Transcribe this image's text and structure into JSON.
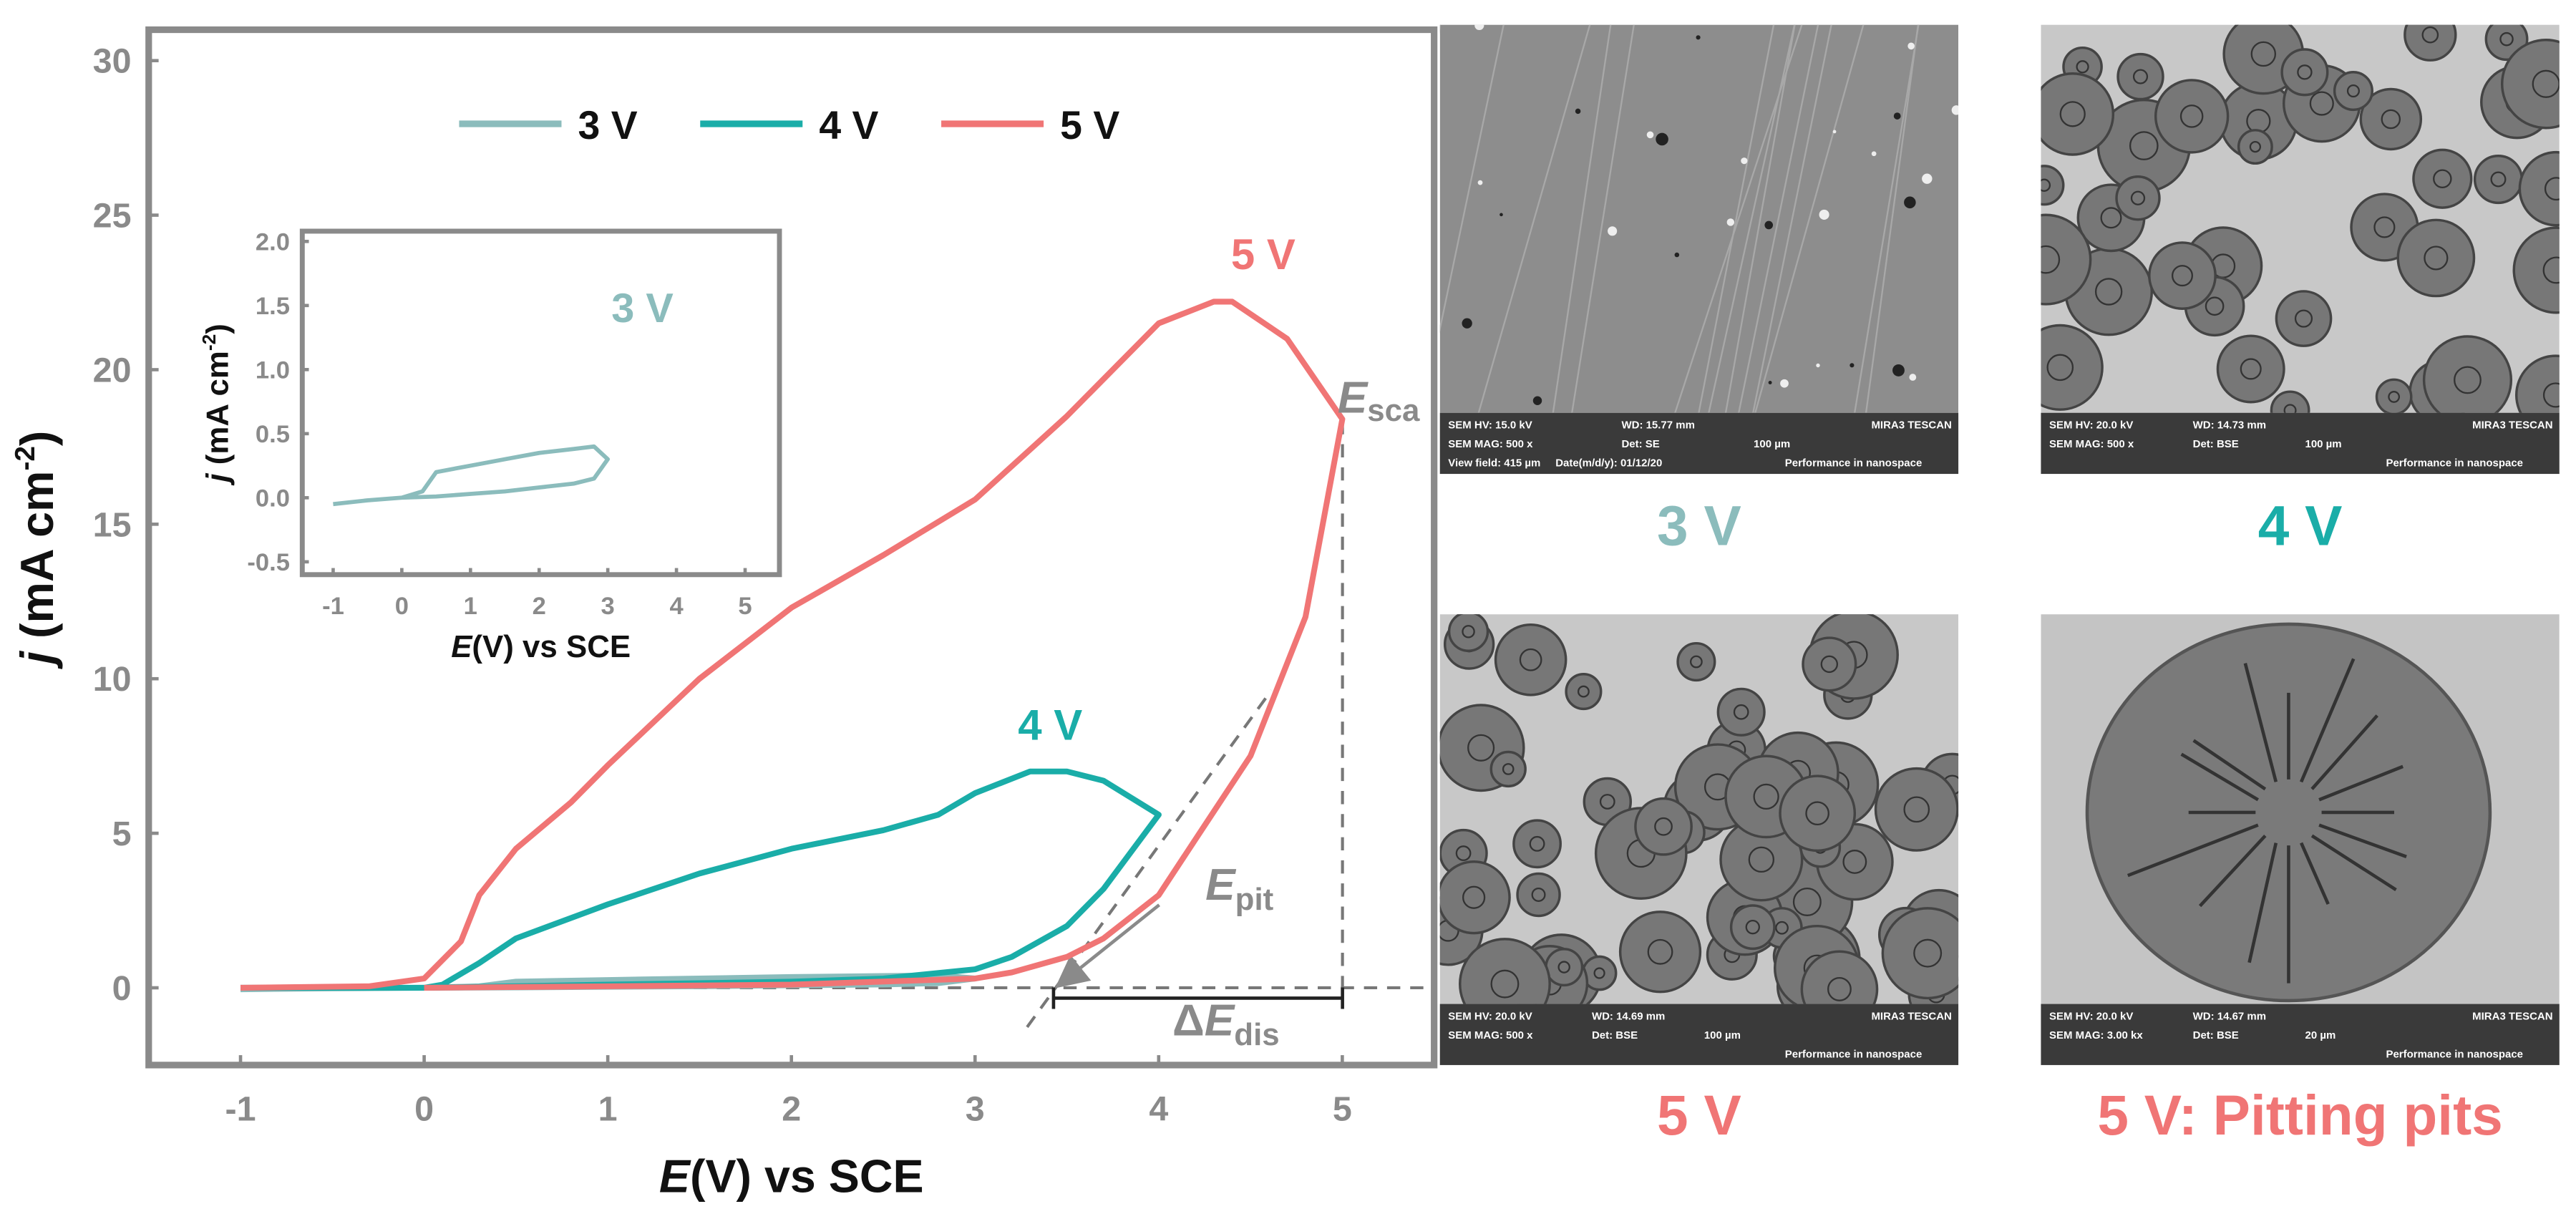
{
  "chart_data": [
    {
      "type": "line",
      "xlabel": [
        "E",
        "(V) vs SCE"
      ],
      "ylabel": [
        "j",
        " (mA cm",
        "-2",
        ")"
      ],
      "xlim": [
        -1.5,
        5.5
      ],
      "ylim": [
        -2.5,
        31
      ],
      "xticks": [
        -1,
        0,
        1,
        2,
        3,
        4,
        5
      ],
      "yticks": [
        0,
        5,
        10,
        15,
        20,
        25,
        30
      ],
      "legend": "top",
      "series": [
        {
          "name": "3 V",
          "color": "#8bbcbc",
          "x": [
            -1,
            -0.5,
            0,
            0.3,
            0.5,
            1,
            1.5,
            2,
            2.5,
            2.8,
            3,
            2.8,
            2.5,
            2,
            1.5,
            1,
            0.5,
            0
          ],
          "values": [
            -0.05,
            -0.02,
            0,
            0.05,
            0.2,
            0.25,
            0.3,
            0.35,
            0.38,
            0.4,
            0.3,
            0.15,
            0.11,
            0.08,
            0.05,
            0.03,
            0.01,
            0
          ]
        },
        {
          "name": "4 V",
          "color": "#1aada8",
          "x": [
            -1,
            0,
            0.1,
            0.3,
            0.5,
            1,
            1.5,
            2,
            2.5,
            2.8,
            3,
            3.3,
            3.5,
            3.7,
            4,
            3.7,
            3.5,
            3.2,
            3,
            2.5,
            2,
            1,
            0
          ],
          "values": [
            0,
            0,
            0.1,
            0.8,
            1.6,
            2.7,
            3.7,
            4.5,
            5.1,
            5.6,
            6.3,
            7,
            7,
            6.7,
            5.6,
            3.2,
            2,
            1,
            0.6,
            0.3,
            0.2,
            0.1,
            0
          ]
        },
        {
          "name": "5 V",
          "color": "#f07575",
          "x": [
            -1,
            -0.3,
            0,
            0.2,
            0.3,
            0.5,
            0.8,
            1,
            1.5,
            2,
            2.5,
            3,
            3.5,
            4,
            4.3,
            4.4,
            4.7,
            5,
            4.8,
            4.5,
            4.2,
            4,
            3.7,
            3.5,
            3.2,
            3,
            2,
            1,
            0
          ],
          "values": [
            0,
            0.05,
            0.3,
            1.5,
            3,
            4.5,
            6,
            7.2,
            10,
            12.3,
            14,
            15.8,
            18.5,
            21.5,
            22.2,
            22.2,
            21,
            18.4,
            12,
            7.5,
            4.8,
            3,
            1.6,
            1,
            0.5,
            0.3,
            0.1,
            0.05,
            0
          ]
        }
      ],
      "annotations": {
        "label_5v": "5 V",
        "label_4v": "4 V",
        "e_sca": [
          "E",
          "sca"
        ],
        "e_pit": [
          "E",
          "pit"
        ],
        "delta_e_dis": [
          "Δ",
          "E",
          "dis"
        ]
      }
    },
    {
      "type": "line",
      "xlabel": [
        "E",
        "(V) vs SCE"
      ],
      "ylabel": [
        "j",
        " (mA cm",
        "-2",
        ")"
      ],
      "xlim": [
        -1.45,
        5.5
      ],
      "ylim": [
        -0.6,
        2.08
      ],
      "xticks": [
        -1,
        0,
        1,
        2,
        3,
        4,
        5
      ],
      "yticks": [
        -0.5,
        {
          "value": 0,
          "label": "0.0"
        },
        0.5,
        {
          "value": 1,
          "label": "1.0"
        },
        1.5,
        {
          "value": 2,
          "label": "2.0"
        }
      ],
      "annotation": "3 V",
      "annotation_color": "#8bbcbc",
      "series": [
        {
          "color": "#8bbcbc",
          "x": [
            -1,
            -0.5,
            0,
            0.3,
            0.5,
            1,
            1.5,
            2,
            2.5,
            2.8,
            3,
            2.8,
            2.5,
            2,
            1.5,
            1,
            0.5,
            0
          ],
          "values": [
            -0.05,
            -0.02,
            0,
            0.05,
            0.2,
            0.25,
            0.3,
            0.35,
            0.38,
            0.4,
            0.3,
            0.15,
            0.11,
            0.08,
            0.05,
            0.03,
            0.01,
            0
          ]
        }
      ]
    }
  ],
  "panels": [
    {
      "caption": "3 V",
      "caption_color": "#8bbcbc",
      "info": [
        "SEM HV: 15.0 kV",
        "WD: 15.77 mm",
        "MIRA3 TESCAN",
        "SEM MAG: 500 x",
        "Det: SE",
        "100 µm",
        "View field: 415 µm",
        "Date(m/d/y): 01/12/20",
        "Performance in nanospace"
      ]
    },
    {
      "caption": "4 V",
      "caption_color": "#1aada8",
      "info": [
        "SEM HV: 20.0 kV",
        "WD: 14.73 mm",
        "MIRA3 TESCAN",
        "SEM MAG: 500 x",
        "Det: BSE",
        "100 µm",
        "Performance in nanospace"
      ]
    },
    {
      "caption": "5 V",
      "caption_color": "#f07575",
      "info": [
        "SEM HV: 20.0 kV",
        "WD: 14.69 mm",
        "MIRA3 TESCAN",
        "SEM MAG: 500 x",
        "Det: BSE",
        "100 µm",
        "Performance in nanospace"
      ]
    },
    {
      "caption": "5 V: Pitting pits",
      "caption_color": "#f07575",
      "info": [
        "SEM HV: 20.0 kV",
        "WD: 14.67 mm",
        "MIRA3 TESCAN",
        "SEM MAG: 3.00 kx",
        "Det: BSE",
        "20 µm",
        "Performance in nanospace"
      ]
    }
  ]
}
